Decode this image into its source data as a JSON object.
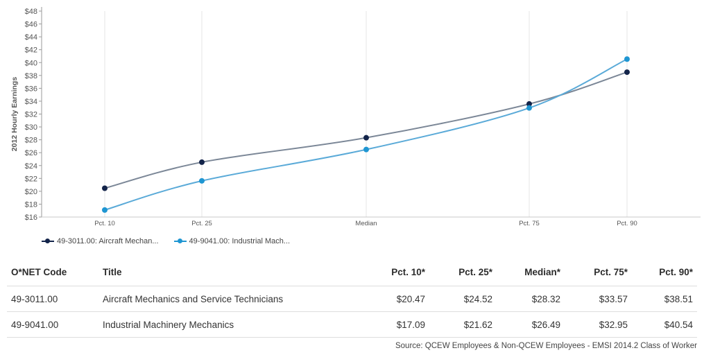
{
  "chart_data": {
    "type": "line",
    "categories": [
      "Pct. 10",
      "Pct. 25",
      "Median",
      "Pct. 75",
      "Pct. 90"
    ],
    "x": [
      10,
      25,
      50,
      75,
      90
    ],
    "ylabel": "2012 Hourly Earnings",
    "ylim": [
      16,
      48
    ],
    "yticks": [
      "$16",
      "$18",
      "$20",
      "$22",
      "$24",
      "$26",
      "$28",
      "$30",
      "$32",
      "$34",
      "$36",
      "$38",
      "$40",
      "$42",
      "$44",
      "$46",
      "$48"
    ],
    "ytick_values": [
      16,
      18,
      20,
      22,
      24,
      26,
      28,
      30,
      32,
      34,
      36,
      38,
      40,
      42,
      44,
      46,
      48
    ],
    "grid": true,
    "legend_position": "bottom-left",
    "series": [
      {
        "name": "49-3011.00: Aircraft Mechan...",
        "values": [
          20.47,
          24.52,
          28.32,
          33.57,
          38.51
        ],
        "line_color": "#7b8797",
        "marker_color": "#13244a"
      },
      {
        "name": "49-9041.00: Industrial Mach...",
        "values": [
          17.09,
          21.62,
          26.49,
          32.95,
          40.54
        ],
        "line_color": "#5aaad8",
        "marker_color": "#1f96d2"
      }
    ]
  },
  "table": {
    "headers": [
      "O*NET Code",
      "Title",
      "Pct. 10*",
      "Pct. 25*",
      "Median*",
      "Pct. 75*",
      "Pct. 90*"
    ],
    "rows": [
      [
        "49-3011.00",
        "Aircraft Mechanics and Service Technicians",
        "$20.47",
        "$24.52",
        "$28.32",
        "$33.57",
        "$38.51"
      ],
      [
        "49-9041.00",
        "Industrial Machinery Mechanics",
        "$17.09",
        "$21.62",
        "$26.49",
        "$32.95",
        "$40.54"
      ]
    ]
  },
  "source": "Source: QCEW Employees & Non-QCEW Employees - EMSI 2014.2 Class of Worker"
}
